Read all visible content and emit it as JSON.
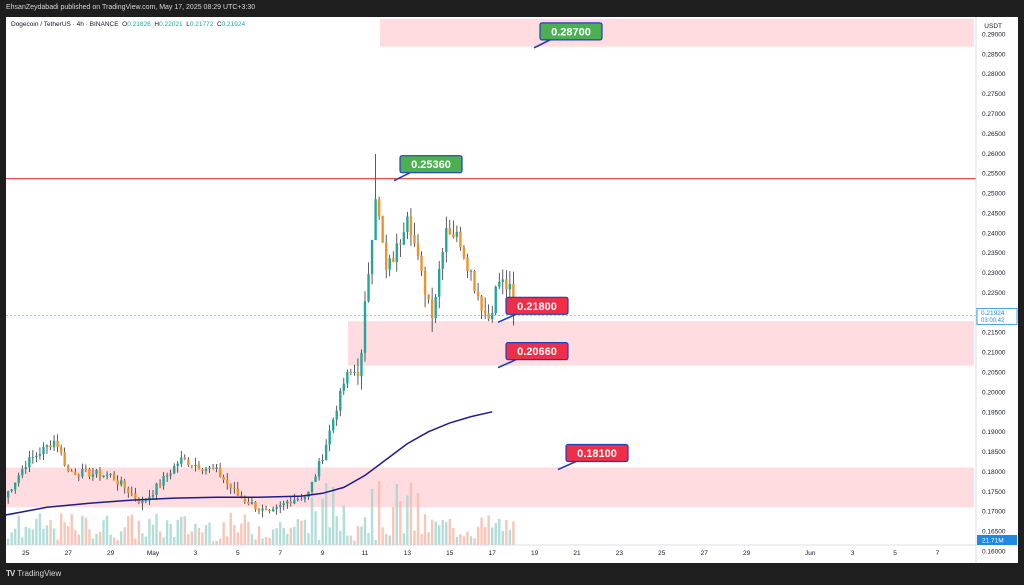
{
  "publish_line": "EhsanZeydabadi published on TradingView.com, May 17, 2025 08:29 UTC+3:30",
  "symbol": {
    "name": "Dogecoin / TetherUS · 4h · BINANCE",
    "o_label": "O",
    "o": "0.21826",
    "h_label": "H",
    "h": "0.22021",
    "l_label": "L",
    "l": "0.21772",
    "c_label": "C",
    "c": "0.21924"
  },
  "currency": "USDT",
  "last_price_tag": {
    "price": "0.21924",
    "timer": "03:00:42"
  },
  "volume_tag": "21.71M",
  "footer": {
    "logo_mark": "TV",
    "brand": "TradingView"
  },
  "colors": {
    "up": "#26a69a",
    "down": "#ef5350",
    "wick": "#131722",
    "ma": "#1f1c8c",
    "resistance": "#e53935",
    "zone_fill": "#ffd6da",
    "callout_green": "#4caf50",
    "callout_red": "#ef2f48",
    "callout_border": "#1f3ebf",
    "price_tag": "#1e88e5"
  },
  "chart_data": {
    "type": "candlestick",
    "timeframe": "4h",
    "y_axis": {
      "ylim": [
        0.1595,
        0.2935
      ],
      "ticks": [
        "0.16000",
        "0.16500",
        "0.17000",
        "0.17500",
        "0.18000",
        "0.18500",
        "0.19000",
        "0.19500",
        "0.20000",
        "0.20500",
        "0.21000",
        "0.21500",
        "0.22000",
        "0.22500",
        "0.23000",
        "0.23500",
        "0.24000",
        "0.24500",
        "0.25000",
        "0.25500",
        "0.26000",
        "0.26500",
        "0.27000",
        "0.27500",
        "0.28000",
        "0.28500",
        "0.29000"
      ]
    },
    "x_axis": {
      "tick_labels": [
        "25",
        "27",
        "29",
        "May",
        "3",
        "5",
        "7",
        "9",
        "11",
        "13",
        "15",
        "17",
        "19",
        "21",
        "23",
        "25",
        "27",
        "29",
        "Jun",
        "3",
        "5",
        "7"
      ],
      "tick_days": [
        -6,
        -4,
        -2,
        0,
        2,
        4,
        6,
        8,
        10,
        12,
        14,
        16,
        18,
        20,
        22,
        24,
        26,
        28,
        31,
        33,
        35,
        37
      ]
    },
    "horizontal_line": {
      "price": 0.2536,
      "label": "0.25360"
    },
    "zones": [
      {
        "from": 0.2868,
        "to": 0.2938
      },
      {
        "from": 0.2066,
        "to": 0.2178
      },
      {
        "from": 0.171,
        "to": 0.181
      }
    ],
    "callouts": [
      {
        "text": "0.28700",
        "price": 0.287,
        "style": "green"
      },
      {
        "text": "0.25360",
        "price": 0.2536,
        "style": "green"
      },
      {
        "text": "0.21800",
        "price": 0.218,
        "style": "red"
      },
      {
        "text": "0.20660",
        "price": 0.2066,
        "style": "red"
      },
      {
        "text": "0.18100",
        "price": 0.181,
        "style": "red"
      }
    ],
    "moving_average": {
      "day": [
        -7,
        -5,
        -3,
        -1,
        1,
        3,
        5,
        7,
        8,
        9,
        10,
        11,
        12,
        13,
        14,
        15,
        16
      ],
      "value": [
        0.169,
        0.171,
        0.172,
        0.1728,
        0.1733,
        0.1735,
        0.1735,
        0.1738,
        0.1745,
        0.176,
        0.179,
        0.183,
        0.187,
        0.19,
        0.1922,
        0.1938,
        0.195
      ]
    },
    "anchors": [
      {
        "day": -7.0,
        "price": 0.1735
      },
      {
        "day": -6.0,
        "price": 0.182
      },
      {
        "day": -4.6,
        "price": 0.188
      },
      {
        "day": -4.0,
        "price": 0.18
      },
      {
        "day": -2.0,
        "price": 0.179
      },
      {
        "day": -0.5,
        "price": 0.172
      },
      {
        "day": 0.5,
        "price": 0.178
      },
      {
        "day": 1.3,
        "price": 0.183
      },
      {
        "day": 3.0,
        "price": 0.18
      },
      {
        "day": 4.0,
        "price": 0.174
      },
      {
        "day": 5.5,
        "price": 0.169
      },
      {
        "day": 6.5,
        "price": 0.173
      },
      {
        "day": 7.3,
        "price": 0.174
      },
      {
        "day": 8.0,
        "price": 0.184
      },
      {
        "day": 8.6,
        "price": 0.195
      },
      {
        "day": 9.1,
        "price": 0.204
      },
      {
        "day": 9.8,
        "price": 0.206
      },
      {
        "day": 10.0,
        "price": 0.221
      },
      {
        "day": 10.5,
        "price": 0.25
      },
      {
        "day": 11.0,
        "price": 0.23
      },
      {
        "day": 11.6,
        "price": 0.237
      },
      {
        "day": 12.0,
        "price": 0.246
      },
      {
        "day": 12.6,
        "price": 0.23
      },
      {
        "day": 13.2,
        "price": 0.22
      },
      {
        "day": 13.8,
        "price": 0.242
      },
      {
        "day": 14.5,
        "price": 0.238
      },
      {
        "day": 15.3,
        "price": 0.225
      },
      {
        "day": 15.8,
        "price": 0.218
      },
      {
        "day": 16.3,
        "price": 0.228
      },
      {
        "day": 16.8,
        "price": 0.226
      },
      {
        "day": 17.1,
        "price": 0.2192
      }
    ]
  }
}
